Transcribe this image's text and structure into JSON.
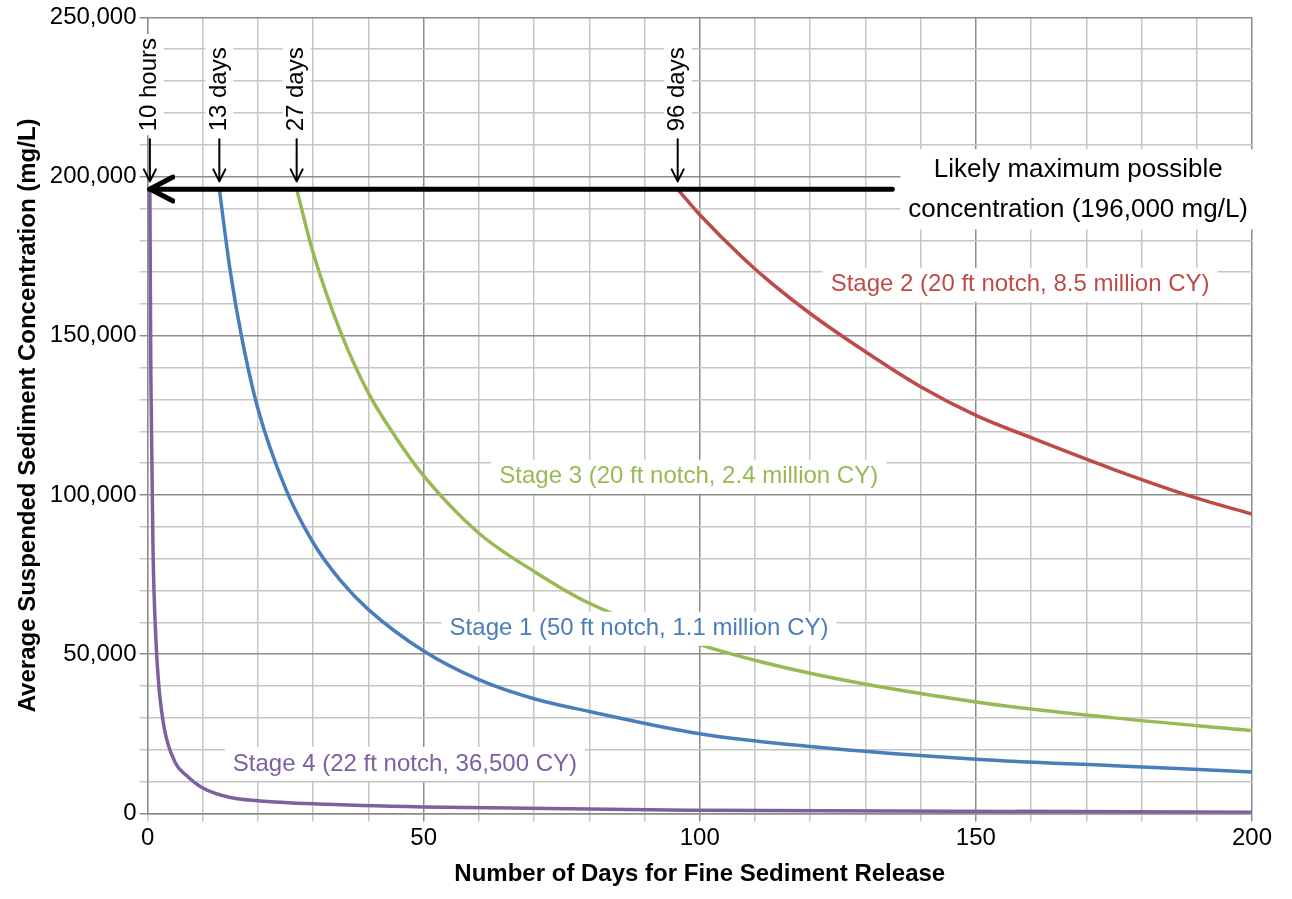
{
  "chart_data": {
    "type": "line",
    "xlabel": "Number of Days for Fine Sediment Release",
    "ylabel": "Average Suspended Sediment Concentration (mg/L)",
    "xlim": [
      0,
      200
    ],
    "ylim": [
      0,
      250000
    ],
    "xticks": [
      0,
      {
        "value": 10,
        "label": null
      },
      {
        "value": 20,
        "label": null
      },
      {
        "value": 30,
        "label": null
      },
      {
        "value": 40,
        "label": null
      },
      50,
      {
        "value": 60,
        "label": null
      },
      {
        "value": 70,
        "label": null
      },
      {
        "value": 80,
        "label": null
      },
      {
        "value": 90,
        "label": null
      },
      100,
      {
        "value": 110,
        "label": null
      },
      {
        "value": 120,
        "label": null
      },
      {
        "value": 130,
        "label": null
      },
      {
        "value": 140,
        "label": null
      },
      150,
      {
        "value": 160,
        "label": null
      },
      {
        "value": 170,
        "label": null
      },
      {
        "value": 180,
        "label": null
      },
      {
        "value": 190,
        "label": null
      },
      200
    ],
    "yticks": [
      {
        "value": 0,
        "label": "0"
      },
      {
        "value": 10000,
        "label": null
      },
      {
        "value": 20000,
        "label": null
      },
      {
        "value": 30000,
        "label": null
      },
      {
        "value": 40000,
        "label": null
      },
      {
        "value": 50000,
        "label": "50,000"
      },
      {
        "value": 60000,
        "label": null
      },
      {
        "value": 70000,
        "label": null
      },
      {
        "value": 80000,
        "label": null
      },
      {
        "value": 90000,
        "label": null
      },
      {
        "value": 100000,
        "label": "100,000"
      },
      {
        "value": 110000,
        "label": null
      },
      {
        "value": 120000,
        "label": null
      },
      {
        "value": 130000,
        "label": null
      },
      {
        "value": 140000,
        "label": null
      },
      {
        "value": 150000,
        "label": "150,000"
      },
      {
        "value": 160000,
        "label": null
      },
      {
        "value": 170000,
        "label": null
      },
      {
        "value": 180000,
        "label": null
      },
      {
        "value": 190000,
        "label": null
      },
      {
        "value": 200000,
        "label": "200,000"
      },
      {
        "value": 210000,
        "label": null
      },
      {
        "value": 220000,
        "label": null
      },
      {
        "value": 230000,
        "label": null
      },
      {
        "value": 240000,
        "label": null
      },
      {
        "value": 250000,
        "label": "250,000"
      }
    ],
    "grid": true,
    "legend": false,
    "marker": "none",
    "line_style": "solid",
    "series": [
      {
        "name": "Stage 1 (50 ft notch, 1.1 million CY)",
        "color": "#4a7ebb",
        "x": [
          13,
          15,
          17,
          20,
          25,
          30,
          35,
          40,
          50,
          60,
          70,
          80,
          100,
          120,
          150,
          175,
          200
        ],
        "values": [
          196000,
          170000,
          150000,
          127000,
          102000,
          85000,
          73000,
          64000,
          51000,
          42000,
          36000,
          32000,
          25000,
          21000,
          17000,
          15000,
          13000
        ]
      },
      {
        "name": "Stage 2 (20 ft notch, 8.5 million CY)",
        "color": "#be4b48",
        "x": [
          96,
          100,
          110,
          120,
          130,
          140,
          150,
          160,
          175,
          190,
          200
        ],
        "values": [
          196000,
          188000,
          171000,
          157000,
          145000,
          134000,
          125000,
          118000,
          108000,
          99000,
          94000
        ]
      },
      {
        "name": "Stage 3 (20 ft notch, 2.4 million CY)",
        "color": "#98b954",
        "x": [
          27,
          30,
          35,
          40,
          45,
          50,
          60,
          70,
          80,
          100,
          120,
          150,
          175,
          200
        ],
        "values": [
          196000,
          176000,
          151000,
          132000,
          118000,
          106000,
          88000,
          76000,
          66000,
          53000,
          44000,
          35000,
          30000,
          26000
        ]
      },
      {
        "name": "Stage 4 (22 ft notch, 36,500 CY)",
        "color": "#7d60a0",
        "x": [
          0.42,
          0.6,
          1,
          1.5,
          2,
          3,
          5,
          7,
          10,
          15,
          20,
          30,
          50,
          100,
          200
        ],
        "values": [
          196000,
          137000,
          82000,
          55000,
          41000,
          27000,
          16000,
          12000,
          8000,
          5000,
          4000,
          3000,
          2000,
          1000,
          400
        ]
      }
    ],
    "ref_lines": [
      {
        "axis": "y",
        "value": 196000,
        "label": "Likely maximum possible concentration (196,000 mg/L)",
        "color": "#000000"
      }
    ],
    "annotations": [
      {
        "text": "10 hours",
        "x": 0.42,
        "y": 196000
      },
      {
        "text": "13 days",
        "x": 13,
        "y": 196000
      },
      {
        "text": "27 days",
        "x": 27,
        "y": 196000
      },
      {
        "text": "96 days",
        "x": 96,
        "y": 196000
      }
    ]
  }
}
